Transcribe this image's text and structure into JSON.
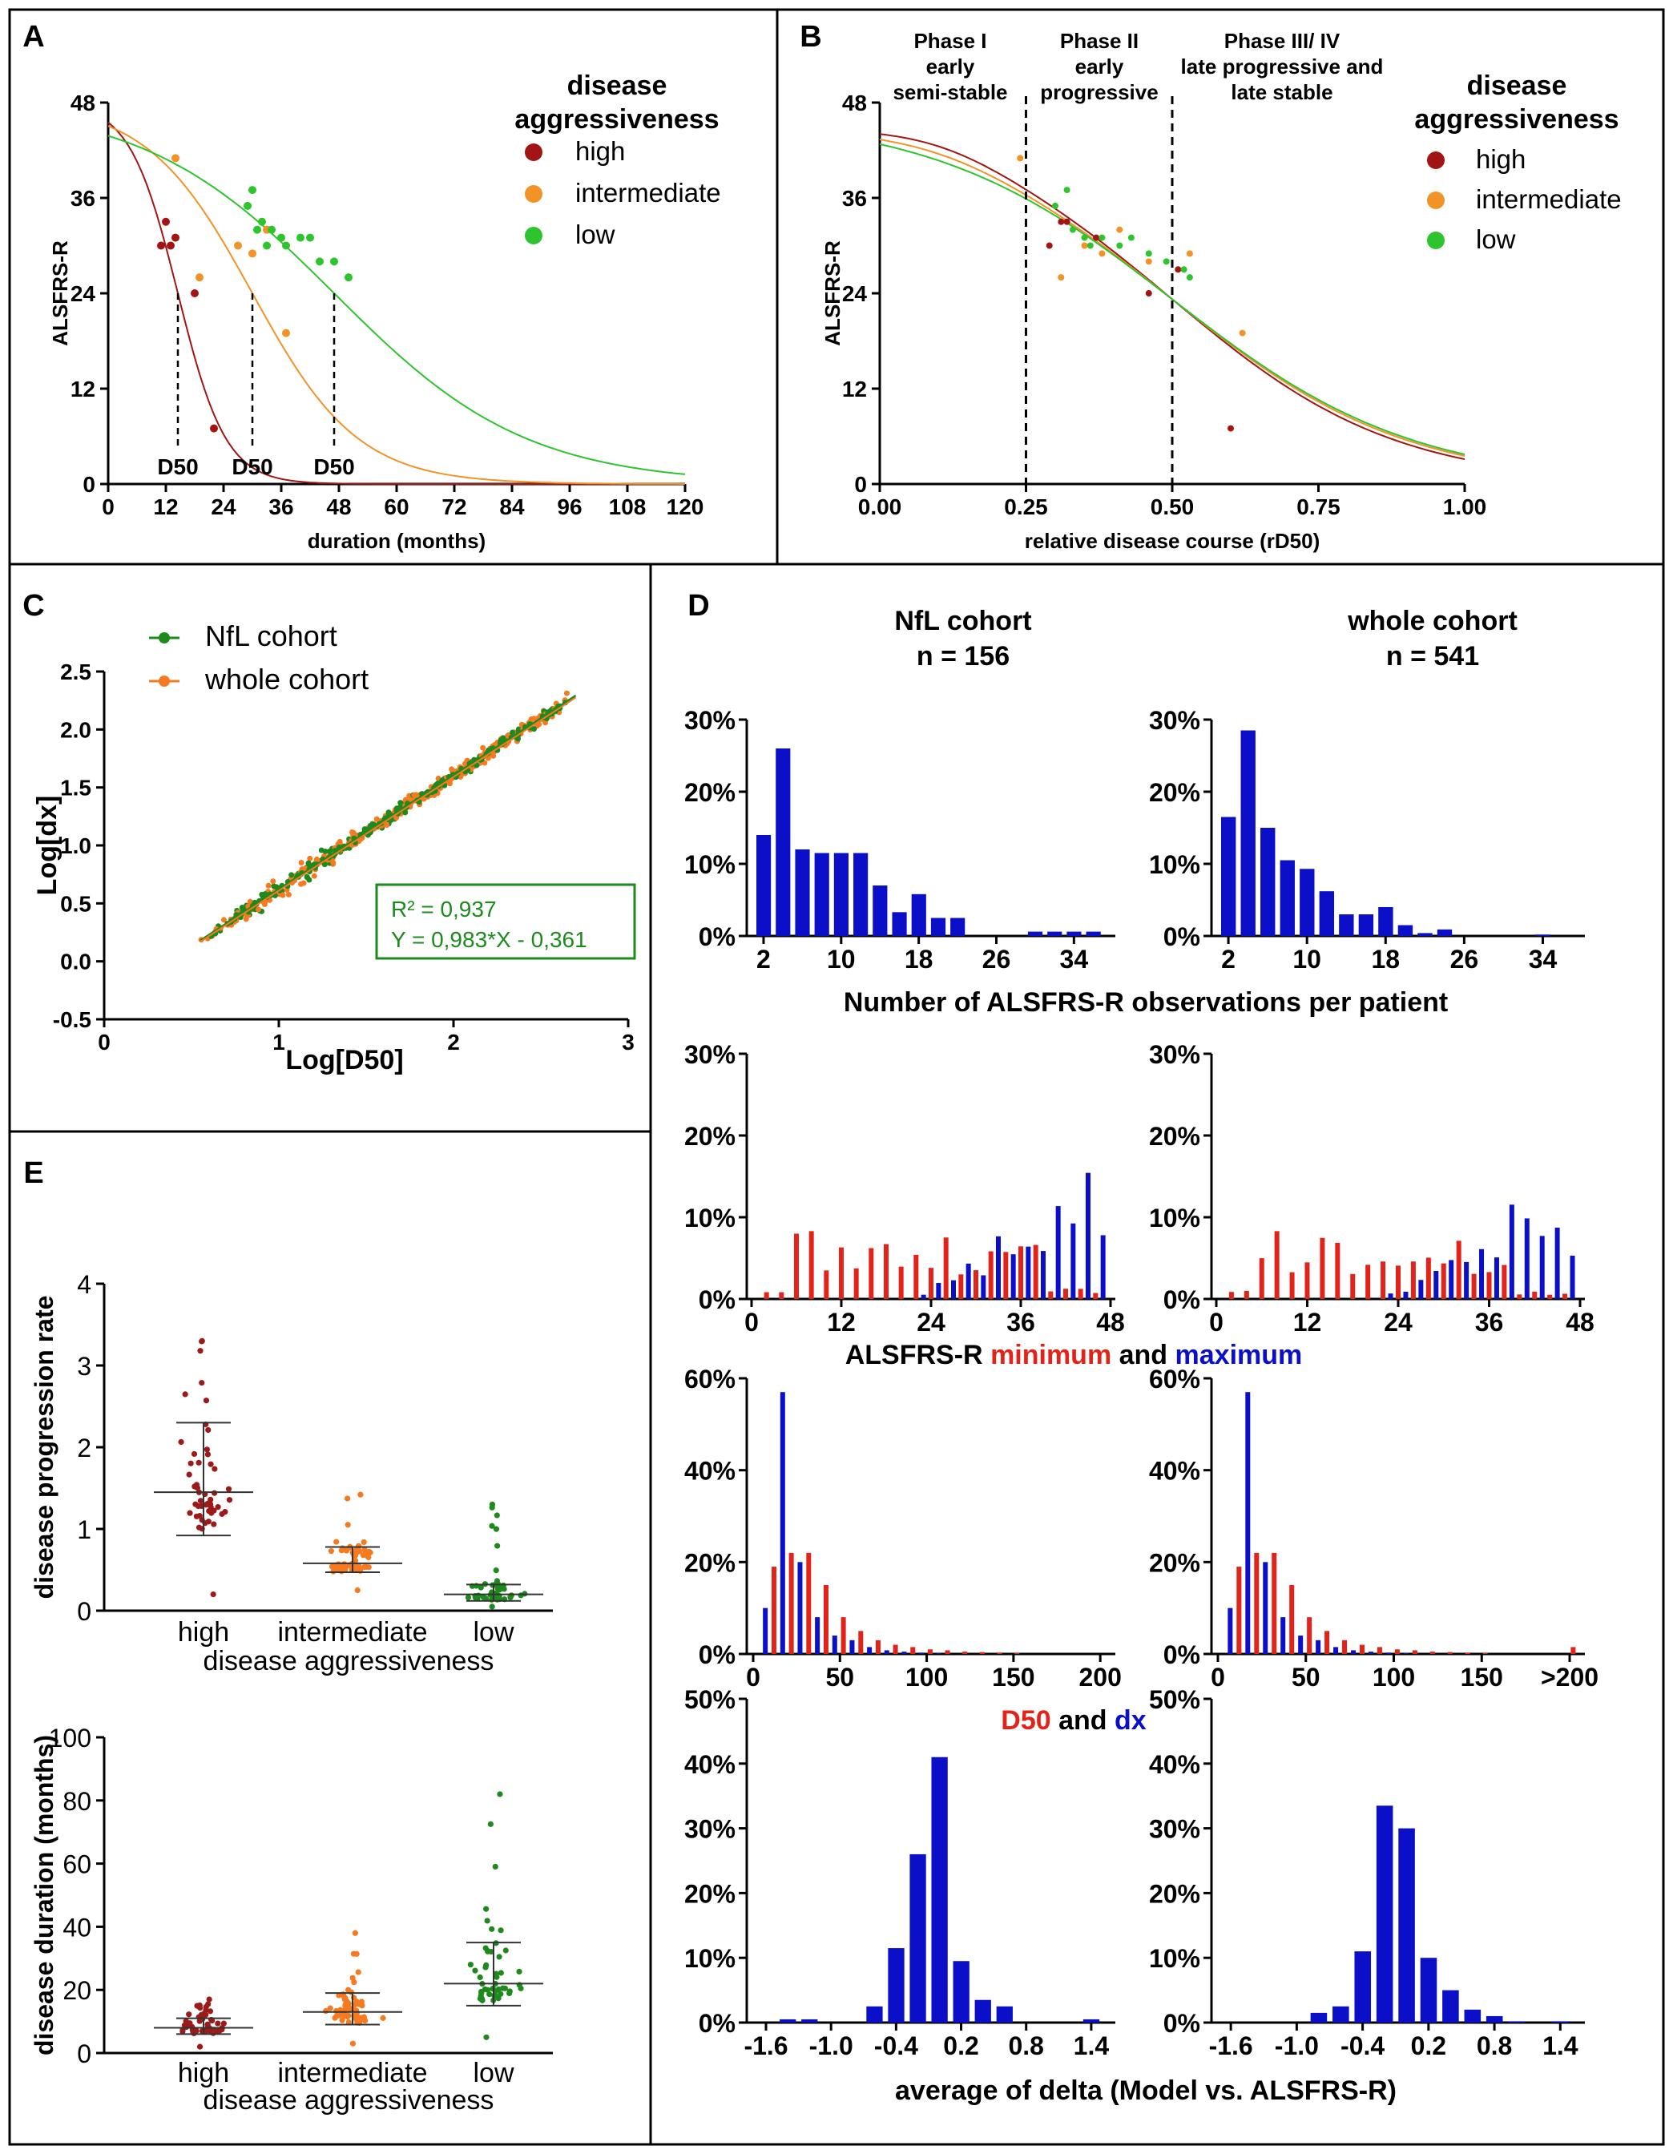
{
  "chart_data": [
    {
      "panel": "A",
      "type": "line",
      "xlabel": "duration (months)",
      "ylabel": "ALSFRS-R",
      "xlim": [
        0,
        120
      ],
      "ylim": [
        0,
        48
      ],
      "xticks": [
        0,
        12,
        24,
        36,
        48,
        60,
        72,
        84,
        96,
        108,
        120
      ],
      "yticks": [
        0,
        12,
        24,
        36,
        48
      ],
      "legend_title": [
        "disease",
        "aggressiveness"
      ],
      "legend": [
        {
          "label": "high",
          "color": "#a31515"
        },
        {
          "label": "intermediate",
          "color": "#f39226"
        },
        {
          "label": "low",
          "color": "#2ec42e"
        }
      ],
      "d50": [
        {
          "x": 14.5,
          "label": "D50"
        },
        {
          "x": 30,
          "label": "D50"
        },
        {
          "x": 47,
          "label": "D50"
        }
      ],
      "curves": [
        {
          "name": "high",
          "d50": 14.5,
          "dx": 5
        },
        {
          "name": "intermediate",
          "d50": 30,
          "dx": 11
        },
        {
          "name": "low",
          "d50": 47,
          "dx": 20
        }
      ],
      "points": {
        "high": [
          [
            11,
            30
          ],
          [
            12,
            33
          ],
          [
            13,
            30
          ],
          [
            14,
            31
          ],
          [
            18,
            24
          ],
          [
            22,
            7
          ]
        ],
        "intermediate": [
          [
            14,
            41
          ],
          [
            19,
            26
          ],
          [
            27,
            30
          ],
          [
            30,
            29
          ],
          [
            33,
            32
          ],
          [
            37,
            19
          ]
        ],
        "low": [
          [
            29,
            35
          ],
          [
            30,
            37
          ],
          [
            31,
            32
          ],
          [
            32,
            33
          ],
          [
            33,
            30
          ],
          [
            34,
            32
          ],
          [
            36,
            31
          ],
          [
            37,
            30
          ],
          [
            40,
            31
          ],
          [
            42,
            31
          ],
          [
            44,
            28
          ],
          [
            47,
            28
          ],
          [
            50,
            26
          ]
        ]
      }
    },
    {
      "panel": "B",
      "type": "line",
      "xlabel": "relative disease course (rD50)",
      "ylabel": "ALSFRS-R",
      "xlim": [
        0,
        1
      ],
      "ylim": [
        0,
        48
      ],
      "xticks": [
        "0.00",
        "0.25",
        "0.50",
        "0.75",
        "1.00"
      ],
      "yticks": [
        0,
        12,
        24,
        36,
        48
      ],
      "phases": [
        {
          "lines": [
            "Phase I",
            "early",
            "semi-stable"
          ]
        },
        {
          "lines": [
            "Phase II",
            "early",
            "progressive"
          ]
        },
        {
          "lines": [
            "Phase III/ IV",
            "late progressive and",
            "late stable"
          ]
        }
      ],
      "phase_boundaries": [
        0.25,
        0.5
      ],
      "legend_title": [
        "disease",
        "aggressiveness"
      ],
      "legend": [
        {
          "label": "high",
          "color": "#a31515"
        },
        {
          "label": "intermediate",
          "color": "#f39226"
        },
        {
          "label": "low",
          "color": "#2ec42e"
        }
      ],
      "points": {
        "high": [
          [
            0.29,
            30
          ],
          [
            0.31,
            33
          ],
          [
            0.32,
            33
          ],
          [
            0.37,
            31
          ],
          [
            0.46,
            24
          ],
          [
            0.51,
            27
          ],
          [
            0.6,
            7
          ]
        ],
        "intermediate": [
          [
            0.24,
            41
          ],
          [
            0.31,
            26
          ],
          [
            0.35,
            30
          ],
          [
            0.38,
            29
          ],
          [
            0.41,
            32
          ],
          [
            0.46,
            28
          ],
          [
            0.53,
            29
          ],
          [
            0.62,
            19
          ]
        ],
        "low": [
          [
            0.3,
            35
          ],
          [
            0.32,
            37
          ],
          [
            0.33,
            32
          ],
          [
            0.35,
            31
          ],
          [
            0.36,
            30
          ],
          [
            0.38,
            31
          ],
          [
            0.41,
            30
          ],
          [
            0.43,
            31
          ],
          [
            0.46,
            29
          ],
          [
            0.49,
            28
          ],
          [
            0.52,
            27
          ],
          [
            0.53,
            26
          ]
        ]
      }
    },
    {
      "panel": "C",
      "type": "scatter",
      "xlabel": "Log[D50]",
      "ylabel": "Log[dx]",
      "xlim": [
        0,
        3
      ],
      "ylim": [
        -0.5,
        2.5
      ],
      "xticks": [
        "0",
        "1",
        "2",
        "3"
      ],
      "yticks": [
        "-0.5",
        "0.0",
        "0.5",
        "1.0",
        "1.5",
        "2.0",
        "2.5"
      ],
      "legend": [
        {
          "label": "NfL cohort",
          "color": "#1e8a1e"
        },
        {
          "label": "whole cohort",
          "color": "#f57a20"
        }
      ],
      "fit": {
        "slope": 0.983,
        "intercept": -0.361
      },
      "annotation": [
        "R² = 0,937",
        "Y = 0,983*X - 0,361"
      ]
    },
    {
      "panel": "D",
      "type": "bar",
      "subtitles": [
        {
          "name": "NfL cohort",
          "n": "n = 156"
        },
        {
          "name": "whole cohort",
          "n": "n  = 541"
        }
      ],
      "rows": [
        {
          "xlabel": "Number of ALSFRS-R observations per patient",
          "ylim": [
            0,
            30
          ],
          "yticks": [
            "0%",
            "10%",
            "20%",
            "30%"
          ],
          "xticks_left": [
            "2",
            "10",
            "18",
            "26",
            "34"
          ],
          "xticks_right": [
            "2",
            "10",
            "18",
            "26",
            "34"
          ],
          "nfl": [
            14,
            26,
            12,
            11.5,
            11.5,
            11.5,
            7,
            3.3,
            5.8,
            2.5,
            2.5,
            0,
            0,
            0,
            0.6,
            0.6,
            0.6,
            0.6
          ],
          "whole": [
            16.5,
            28.5,
            15,
            10.5,
            9.3,
            6.2,
            3,
            3,
            4,
            1.5,
            0.4,
            0.9,
            0,
            0,
            0,
            0,
            0.2,
            0
          ]
        },
        {
          "xlabel_parts": [
            {
              "text": "ALSFRS-R ",
              "color": "#000000"
            },
            {
              "text": "minimum",
              "color": "#e2231a"
            },
            {
              "text": " and ",
              "color": "#000000"
            },
            {
              "text": "maximum",
              "color": "#0b10c8"
            }
          ],
          "ylim": [
            0,
            30
          ],
          "yticks": [
            "0%",
            "10%",
            "20%",
            "30%"
          ],
          "xticks": [
            "0",
            "12",
            "24",
            "36",
            "48"
          ]
        },
        {
          "xlabel_parts": [
            {
              "text": "D50",
              "color": "#e2231a"
            },
            {
              "text": " and ",
              "color": "#000000"
            },
            {
              "text": "dx",
              "color": "#0b10c8"
            }
          ],
          "ylim": [
            0,
            60
          ],
          "yticks": [
            "0%",
            "20%",
            "40%",
            "60%"
          ],
          "xticks_left": [
            "0",
            "50",
            "100",
            "150",
            "200"
          ],
          "xticks_right": [
            "0",
            "50",
            "100",
            "150",
            ">200"
          ]
        },
        {
          "xlabel": "average of delta (Model vs. ALSFRS-R)",
          "ylim": [
            0,
            50
          ],
          "yticks": [
            "0%",
            "10%",
            "20%",
            "30%",
            "40%",
            "50%"
          ],
          "xticks": [
            "-1.6",
            "-1.0",
            "-0.4",
            "0.2",
            "0.8",
            "1.4"
          ],
          "nfl": [
            0,
            0.5,
            0.5,
            0,
            0,
            2.5,
            11.5,
            26,
            41,
            9.5,
            3.5,
            2.5,
            0,
            0,
            0,
            0.5
          ],
          "whole": [
            0,
            0,
            0,
            0,
            1.5,
            2.5,
            11,
            33.5,
            30,
            10,
            5,
            2,
            1,
            0.2,
            0,
            0.2
          ]
        }
      ]
    },
    {
      "panel": "E",
      "type": "scatter",
      "plots": [
        {
          "ylabel": "disease progression rate",
          "xlabel": "disease aggressiveness",
          "ylim": [
            0,
            4
          ],
          "yticks": [
            "0",
            "1",
            "2",
            "3",
            "4"
          ],
          "groups": [
            {
              "label": "high",
              "color": "#9c1a1a",
              "median": 1.45,
              "q1": 0.92,
              "q3": 2.3,
              "min": 0.2,
              "max": 3.3,
              "n": 50
            },
            {
              "label": "intermediate",
              "color": "#f57a20",
              "median": 0.58,
              "q1": 0.47,
              "q3": 0.78,
              "min": 0.25,
              "max": 1.42,
              "n": 60
            },
            {
              "label": "low",
              "color": "#1e8a1e",
              "median": 0.2,
              "q1": 0.12,
              "q3": 0.32,
              "min": 0.05,
              "max": 1.3,
              "n": 50
            }
          ]
        },
        {
          "ylabel": "disease duration (months)",
          "xlabel": "disease aggressiveness",
          "ylim": [
            0,
            100
          ],
          "yticks": [
            "0",
            "20",
            "40",
            "60",
            "80",
            "100"
          ],
          "groups": [
            {
              "label": "high",
              "color": "#9c1a1a",
              "median": 8,
              "q1": 6,
              "q3": 11,
              "min": 2,
              "max": 17,
              "n": 50
            },
            {
              "label": "intermediate",
              "color": "#f57a20",
              "median": 13,
              "q1": 9,
              "q3": 19,
              "min": 3,
              "max": 38,
              "n": 65
            },
            {
              "label": "low",
              "color": "#1e8a1e",
              "median": 22,
              "q1": 15,
              "q3": 35,
              "min": 5,
              "max": 82,
              "n": 50
            }
          ]
        }
      ]
    }
  ],
  "panel_labels": [
    "A",
    "B",
    "C",
    "D",
    "E"
  ],
  "colors": {
    "high": "#a31515",
    "intermediate": "#f39226",
    "low": "#2ec42e",
    "red": "#e2231a",
    "blue": "#0b10c8"
  }
}
